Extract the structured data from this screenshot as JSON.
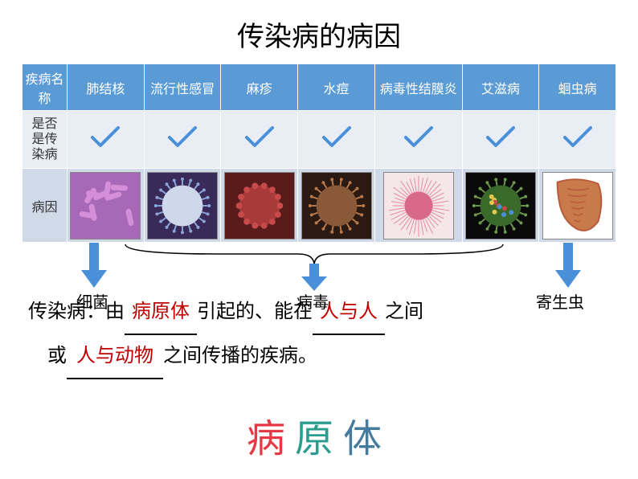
{
  "title": "传染病的病因",
  "table": {
    "header_bg": "#5b9bd5",
    "header_fg": "#ffffff",
    "row2_bg": "#e9eef5",
    "row3_bg": "#d0d9e8",
    "columns": [
      "疾病名称",
      "肺结核",
      "流行性感冒",
      "麻疹",
      "水痘",
      "病毒性结膜炎",
      "艾滋病",
      "蛔虫病"
    ],
    "row2_label": "是否是传染病",
    "row2_checks": [
      true,
      true,
      true,
      true,
      true,
      true,
      true
    ],
    "row3_label": "病因",
    "pathogens": [
      {
        "name": "tuberculosis-bacteria",
        "bg": "#a768b8",
        "shape": "rods",
        "fg": "#d58ed8"
      },
      {
        "name": "influenza-virus",
        "bg": "#3a2a5a",
        "shape": "sphere-spikes",
        "fg": "#8aa6d6",
        "core": "#cfd8ea"
      },
      {
        "name": "measles-virus",
        "bg": "#5a1b1b",
        "shape": "sphere-bumps",
        "fg": "#c94a4a",
        "core": "#a83a3a"
      },
      {
        "name": "varicella-virus",
        "bg": "#2a1a12",
        "shape": "sphere-rough",
        "fg": "#b87a4a",
        "core": "#8a5a38"
      },
      {
        "name": "conjunctivitis-virus",
        "bg": "#f5e6ea",
        "shape": "star-spikes",
        "fg": "#e38aa0",
        "core": "#d86a88"
      },
      {
        "name": "hiv-virus",
        "bg": "#0a0a0a",
        "shape": "sphere-colorful",
        "fg": "#6a9a4a",
        "core": "#3a6a2a"
      },
      {
        "name": "roundworm",
        "bg": "#ffffff",
        "shape": "worm",
        "fg": "#c97a4a",
        "core": "#b85a3a"
      }
    ]
  },
  "categories": {
    "bacteria": "细菌",
    "virus": "病毒",
    "parasite": "寄生虫"
  },
  "sentence": {
    "prefix": "传染病：由",
    "blank1": "病原体",
    "mid1": "引起的、能在",
    "blank2": "人与人",
    "mid2": "之间",
    "line2_prefix": "或",
    "blank3": "人与动物",
    "line2_suffix": "之间传播的疾病。"
  },
  "big_label": "病原体",
  "arrow_color": "#4a90d9",
  "check_color": "#4a90d9"
}
